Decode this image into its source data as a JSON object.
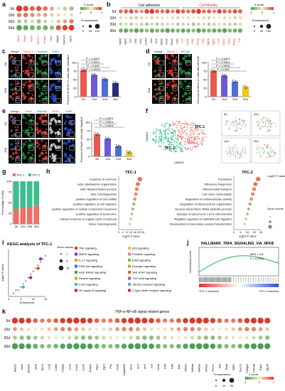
{
  "panel_labels": [
    "a",
    "b",
    "c",
    "d",
    "e",
    "f",
    "g",
    "h",
    "i",
    "j",
    "k"
  ],
  "rows": [
    "5d",
    "10d",
    "20d",
    "30d"
  ],
  "panel_a": {
    "genes": [
      "Pax6",
      "Pax6",
      "Pax3",
      "Nkx2-1",
      "Foxp2",
      "Dcx",
      "Map2",
      "Rbfox3",
      "Syn1"
    ],
    "zscore": [
      [
        1.5,
        1.2,
        1.0,
        1.1,
        0.9,
        0.6,
        -0.2,
        -0.5,
        -0.7
      ],
      [
        0.8,
        0.9,
        0.7,
        0.5,
        0.6,
        0.3,
        0.2,
        0.0,
        -0.2
      ],
      [
        -0.6,
        -0.5,
        -0.3,
        -0.7,
        -0.4,
        -0.1,
        0.4,
        0.6,
        0.8
      ],
      [
        -1.2,
        -1.1,
        -1.0,
        -0.9,
        -1.0,
        -0.8,
        1.1,
        1.2,
        1.3
      ]
    ]
  },
  "legend_a": {
    "z": "Z score",
    "zticks": [
      "-1",
      "0",
      "1"
    ],
    "pct": "% expression",
    "pctticks": [
      "5",
      "25",
      "100"
    ]
  },
  "panel_b": {
    "group_left": "Cell adhesion",
    "group_right": "Cell Motility",
    "genes": [
      "Itga4",
      "Itgb1",
      "Ezr",
      "Rdx",
      "Msn",
      "Cd44",
      "Vim",
      "Tln1",
      "Hsp90b1",
      "Grb2",
      "Rac1",
      "Odn",
      "Crk",
      "Cdc42",
      "Ptk2",
      "Rhoa",
      "Flt1",
      "Pdgfrb",
      "Tgfb1",
      "Ccl2",
      "Cxcl12",
      "Plau",
      "Efna1",
      "Tnf"
    ],
    "zscore": [
      [
        0.9,
        1.0,
        1.1,
        0.8,
        0.7,
        1.2,
        1.3,
        1.0,
        0.9,
        1.1,
        0.8,
        1.2,
        1.0,
        0.9,
        1.1,
        1.3,
        0.9,
        1.0,
        0.8,
        1.2,
        1.0,
        0.9,
        1.1,
        1.0
      ],
      [
        0.2,
        0.1,
        0.3,
        0.4,
        0.2,
        0.1,
        0.3,
        0.2,
        0.1,
        0.0,
        0.2,
        0.3,
        0.1,
        0.2,
        0.0,
        0.1,
        0.2,
        0.3,
        0.1,
        0.0,
        0.2,
        0.1,
        0.3,
        0.2
      ],
      [
        -0.4,
        -0.3,
        -0.5,
        -0.2,
        -0.4,
        -0.6,
        -0.3,
        -0.5,
        -0.4,
        -0.3,
        -0.2,
        -0.5,
        -0.4,
        -0.3,
        -0.6,
        -0.4,
        -0.3,
        -0.5,
        -0.4,
        -0.2,
        -0.3,
        -0.4,
        -0.5,
        -0.3
      ],
      [
        -1.0,
        -1.1,
        -0.9,
        -1.2,
        -1.0,
        -0.8,
        -1.1,
        -0.9,
        -1.0,
        -1.2,
        -1.0,
        -0.9,
        -1.1,
        -1.0,
        -0.8,
        -1.2,
        -1.0,
        -0.9,
        -1.1,
        -1.0,
        -1.2,
        -0.9,
        -1.0,
        -1.1
      ]
    ]
  },
  "panel_c": {
    "channels": [
      "Merge",
      "NKX2-1",
      "Vimentin",
      "DAPI"
    ],
    "ylabel": "Percent of NKX2-1* cells with Vimentin*",
    "ptext": [
      "P < 0.0001",
      "P < 0.0001",
      "P = 0.005",
      "P = 0.0045"
    ],
    "chart_data": {
      "type": "bar",
      "categories": [
        "5d",
        "10d",
        "20d",
        "30d"
      ],
      "values": [
        78,
        64,
        52,
        40
      ],
      "ylim": [
        0,
        100
      ],
      "yticks": [
        0,
        25,
        50,
        75,
        100
      ]
    }
  },
  "panel_d": {
    "channels": [
      "Merge",
      "NKX2-1",
      "MCAM"
    ],
    "ylabel": "Percent of NKX2-1* cells with MCAM*",
    "ptext": [
      "P < 0.0001",
      "P < 0.0001",
      "P = 0.0004",
      "P = 0.006"
    ],
    "chart_data": {
      "type": "bar",
      "categories": [
        "5d",
        "10d",
        "20d",
        "30d"
      ],
      "values": [
        75,
        62,
        44,
        28
      ],
      "ylim": [
        0,
        100
      ],
      "yticks": [
        0,
        25,
        50,
        75,
        100
      ]
    }
  },
  "panel_e": {
    "channels": [
      "Merge",
      "Pax6",
      "Map4k4",
      "WGA",
      "DAPI"
    ],
    "ylabel": "Percent of Pax6* cells with Map4k4*",
    "ptext": [
      "P < 0.0001",
      "P < 0.0001",
      "P = 0.0003"
    ],
    "chart_data": {
      "type": "bar",
      "categories": [
        "5d",
        "10d",
        "20d",
        "30d"
      ],
      "values": [
        65,
        52,
        30,
        12
      ],
      "ylim": [
        0,
        100
      ],
      "yticks": [
        0,
        25,
        50,
        75,
        100
      ]
    }
  },
  "panel_f": {
    "cluster1": "TFC-1",
    "cluster2": "TFC-2",
    "xlabel": "UMAP2",
    "ylabel": "UMAP1",
    "minis": [
      "5d",
      "20d",
      "10d",
      "30d"
    ]
  },
  "panel_g": {
    "ylabel": "Percentage of cells",
    "legend": [
      "TFC-1",
      "TFC-2"
    ],
    "chart_data": {
      "type": "bar",
      "categories": [
        "5d",
        "10d",
        "20d",
        "30d"
      ],
      "series": [
        {
          "name": "TFC-1",
          "values": [
            35,
            38,
            40,
            43
          ]
        },
        {
          "name": "TFC-2",
          "values": [
            65,
            62,
            60,
            57
          ]
        }
      ],
      "ylim": [
        0,
        100
      ],
      "yticks": [
        0,
        25,
        50,
        75,
        100
      ]
    }
  },
  "panel_h": {
    "left": {
      "title": "TFC-1",
      "terms": [
        "response to hormone",
        "actin cytoskeleton organization",
        "actin filament-based process",
        "tube morphogenesis",
        "positive regulation of cell motility",
        "positive regulation of cell migration",
        "positive regulation of cellular component movement",
        "positive regulation of locomotion",
        "cellular response to organic cyclic compound",
        "tissue morphogenesis"
      ],
      "xlabel": "-log10 P value",
      "chart_data": {
        "type": "scatter",
        "values": [
          21,
          19,
          18,
          17,
          16,
          15,
          14,
          13,
          12,
          11
        ],
        "xlim": [
          0,
          24
        ],
        "xticks": [
          0,
          4,
          8,
          12,
          16,
          20,
          24
        ]
      }
    },
    "right": {
      "title": "TFC-2",
      "terms": [
        "Translation",
        "Ribosome biogenesis",
        "Mitochondrial transport",
        "Cell redox homeostasis",
        "Regulation of oxidoreductase activity",
        "Regulation of mitochondrion organization",
        "Nuclear-transcribed mRNA catabolic process",
        "Release of cytochrome c from mitochondria",
        "Negative regulation of epithelial cell migration",
        "Development of secondary sexual characteristics"
      ],
      "xlabel": "-log10 P value",
      "legend_title": "-log10 P value",
      "legend_counts": "Gene counts",
      "chart_data": {
        "type": "scatter",
        "values": [
          18,
          16,
          15,
          14,
          13,
          12,
          11,
          10,
          9,
          8
        ],
        "xlim": [
          0,
          20
        ],
        "xticks": [
          0,
          5,
          10,
          15,
          20
        ]
      }
    }
  },
  "panel_i": {
    "title": "KEGG analysis of TFC-1",
    "xlabel": "Enrichment",
    "ylabel": "-log10 P value",
    "counts_title": "Gene counts",
    "counts": [
      "1",
      "8",
      "16"
    ],
    "pathways_left": [
      "TNF signaling",
      "MAPK signaling",
      "IL-17 signaling",
      "PI3K-Akt signaling",
      "AGE-RAGE signaling",
      "Relaxin signaling",
      "FoxO signaling",
      "NF-kappa B signaling"
    ],
    "pathways_right": [
      "p53 signaling",
      "Prolactin signaling",
      "ErbB signaling",
      "Estrogen signaling",
      "JAK-STAT signaling",
      "TGF-beta signaling",
      "Toll-like receptor signaling",
      "C-type lectin receptor signaling"
    ],
    "colors_left": [
      "#e53a2b",
      "#8b2bbf",
      "#f08c2a",
      "#2a6fd1",
      "#3aa84a",
      "#d4a31a",
      "#4ab3d1",
      "#a32a7f"
    ],
    "colors_right": [
      "#f0c419",
      "#e07aa6",
      "#7fbf3a",
      "#c9a227",
      "#d16a2a",
      "#9b59b6",
      "#5fa8d3",
      "#c0392b"
    ],
    "chart_data": {
      "type": "scatter",
      "x": [
        2,
        3,
        4,
        5,
        6,
        7,
        8,
        9,
        10,
        11,
        12,
        13,
        14,
        15,
        6,
        9,
        12,
        13
      ],
      "y": [
        1,
        2,
        2,
        3,
        4,
        5,
        6,
        7,
        8,
        9,
        10,
        11,
        12,
        13,
        3,
        6,
        9,
        12
      ],
      "xlim": [
        0,
        15
      ],
      "ylim": [
        0,
        15
      ]
    }
  },
  "panel_j": {
    "title": "HALLMARK_TNFA_SIGNALING_VIA_NFKB",
    "nes": "NES = 3.8",
    "p": "P = 0.0001",
    "ylabel": "Enrichment score",
    "left_label": "TFC-1 enriched",
    "right_label": "TFC-2 enriched"
  },
  "panel_k": {
    "title": "TNF-α-NF-κB signal related genes",
    "genes": [
      "Abcb1",
      "Akt2",
      "Bcl2a1",
      "Bcl3",
      "Birc3",
      "Ccl2",
      "Cd83",
      "Cebpb",
      "Csf1",
      "Cxcl1",
      "Cxcl2",
      "Dusp1",
      "Egr1",
      "Egr3",
      "Fos",
      "Fosb",
      "Gadd45b",
      "Gem",
      "Ier2",
      "Ier3",
      "Jun",
      "Junb",
      "Klf4",
      "Klf6",
      "Myc",
      "Nfkb1",
      "Nfkbia",
      "Nfkbie",
      "Nr4a1",
      "Pnrc1",
      "Rel",
      "Relb",
      "Sgk1",
      "Socs3",
      "Tnfaip3",
      "Tnfrsf9",
      "Tnip1",
      "Zfp36"
    ],
    "legend_z": "Z score",
    "zticks": [
      "-1",
      "0",
      "1"
    ],
    "legend_pct": "% expression",
    "pctticks": [
      "6",
      "24",
      "96"
    ]
  }
}
